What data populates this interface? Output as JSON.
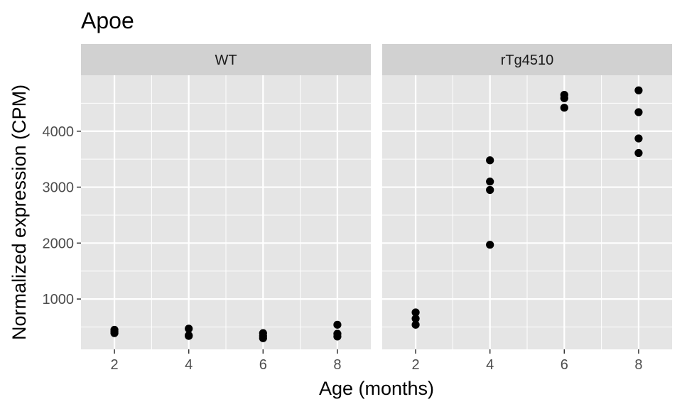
{
  "chart_data": {
    "type": "scatter",
    "title": "Apoe",
    "xlabel": "Age (months)",
    "ylabel": "Normalized expression (CPM)",
    "x_ticks": [
      2,
      4,
      6,
      8
    ],
    "y_ticks": [
      1000,
      2000,
      3000,
      4000
    ],
    "xlim": [
      1.1,
      8.9
    ],
    "ylim": [
      100,
      5000
    ],
    "grid": true,
    "colors": {
      "panel_bg": "#e5e5e5",
      "strip_bg": "#d1d1d1",
      "grid": "#ffffff",
      "point": "#000000"
    },
    "facets": [
      {
        "name": "WT",
        "points": [
          {
            "x": 2,
            "y": 450
          },
          {
            "x": 2,
            "y": 420
          },
          {
            "x": 2,
            "y": 390
          },
          {
            "x": 4,
            "y": 470
          },
          {
            "x": 4,
            "y": 350
          },
          {
            "x": 4,
            "y": 340
          },
          {
            "x": 6,
            "y": 390
          },
          {
            "x": 6,
            "y": 340
          },
          {
            "x": 6,
            "y": 300
          },
          {
            "x": 8,
            "y": 540
          },
          {
            "x": 8,
            "y": 380
          },
          {
            "x": 8,
            "y": 330
          }
        ]
      },
      {
        "name": "rTg4510",
        "points": [
          {
            "x": 2,
            "y": 760
          },
          {
            "x": 2,
            "y": 650
          },
          {
            "x": 2,
            "y": 540
          },
          {
            "x": 4,
            "y": 3480
          },
          {
            "x": 4,
            "y": 3100
          },
          {
            "x": 4,
            "y": 2950
          },
          {
            "x": 4,
            "y": 1970
          },
          {
            "x": 6,
            "y": 4650
          },
          {
            "x": 6,
            "y": 4590
          },
          {
            "x": 6,
            "y": 4420
          },
          {
            "x": 8,
            "y": 4730
          },
          {
            "x": 8,
            "y": 4340
          },
          {
            "x": 8,
            "y": 3870
          },
          {
            "x": 8,
            "y": 3610
          }
        ]
      }
    ]
  }
}
